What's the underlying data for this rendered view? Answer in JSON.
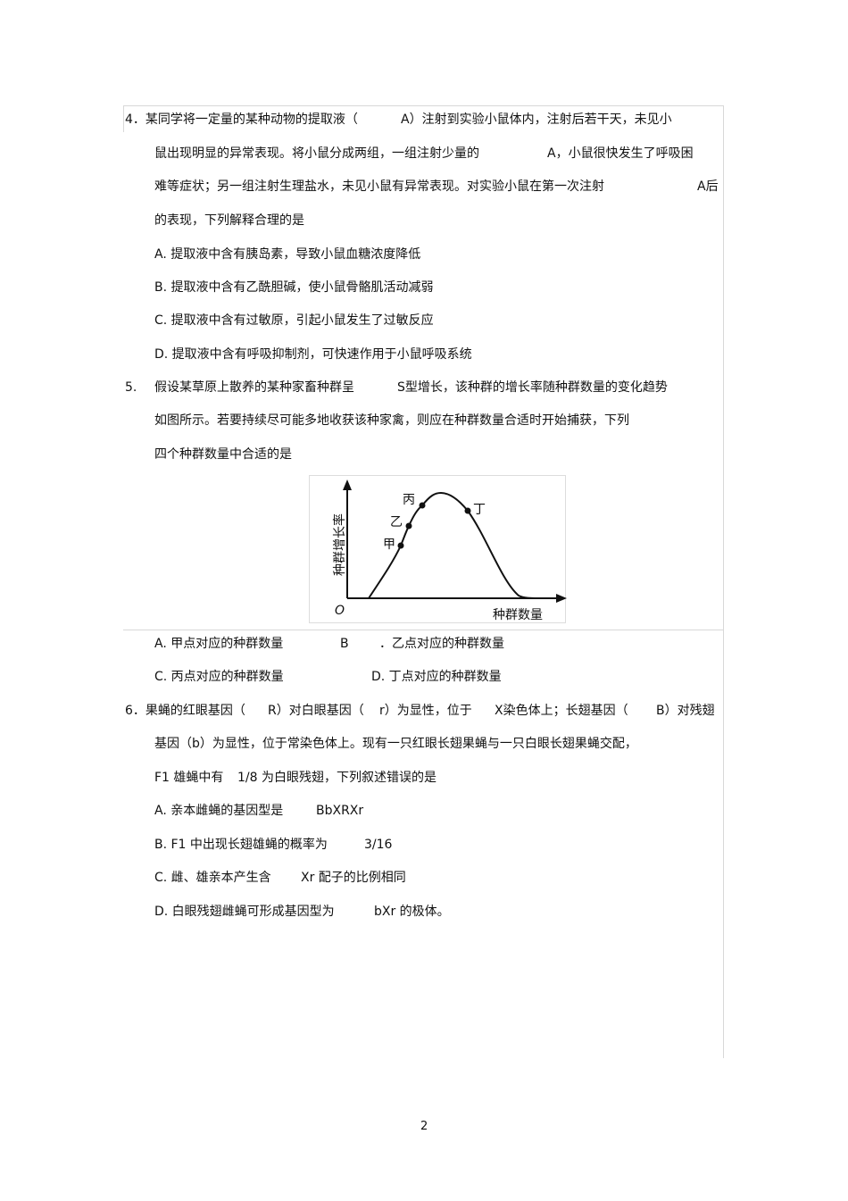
{
  "q4": {
    "l1a": "4．某同学将一定量的某种动物的提取液（",
    "l1b": "A）注射到实验小鼠体内，注射后若干天，未见小",
    "l2a": "鼠出现明显的异常表现。将小鼠分成两组，一组注射少量的",
    "l2b": "A，小鼠很快发生了呼吸困",
    "l3a": "难等症状；另一组注射生理盐水，未见小鼠有异常表现。对实验小鼠在第一次注射",
    "l3b": "A后",
    "l4": "的表现，下列解释合理的是",
    "options": [
      "A.  提取液中含有胰岛素，导致小鼠血糖浓度降低",
      "B.  提取液中含有乙酰胆碱，使小鼠骨骼肌活动减弱",
      "C.  提取液中含有过敏原，引起小鼠发生了过敏反应",
      "D.  提取液中含有呼吸抑制剂，可快速作用于小鼠呼吸系统"
    ]
  },
  "q5": {
    "num": "5.",
    "l1a": "假设某草原上散养的某种家畜种群呈",
    "l1b": "S型增长，该种群的增长率随种群数量的变化趋势",
    "l2": "如图所示。若要持续尽可能多地收获该种家禽，则应在种群数量合适时开始捕获，下列",
    "l3": "四个种群数量中合适的是",
    "figure": {
      "ylabel": "种群增长率",
      "xlabel": "种群数量",
      "origin": "O",
      "points": [
        "甲",
        "乙",
        "丙",
        "丁"
      ]
    },
    "optA": "A.  甲点对应的种群数量",
    "optB1": "B",
    "optB2": "．乙点对应的种群数量",
    "optC": "C.  丙点对应的种群数量",
    "optD": "D.  丁点对应的种群数量"
  },
  "q6": {
    "l1a": "6．果蝇的红眼基因（",
    "l1b": "R）对白眼基因（",
    "l1c": "r）为显性，位于",
    "l1d": "X染色体上；长翅基因（",
    "l1e": "B）对残翅",
    "l2": "基因（b）为显性，位于常染色体上。现有一只红眼长翅果蝇与一只白眼长翅果蝇交配，",
    "l3a": "F1 雄蝇中有",
    "l3b": "1/8  为白眼残翅，下列叙述错误的是",
    "oA1": "A.  亲本雌蝇的基因型是",
    "oA2": "BbXRXr",
    "oB1": "B.  F1 中出现长翅雄蝇的概率为",
    "oB2": "3/16",
    "oC1": "C.  雌、雄亲本产生含",
    "oC2": "Xr 配子的比例相同",
    "oD1": "D.  白眼残翅雌蝇可形成基因型为",
    "oD2": "bXr 的极体。"
  },
  "page_number": "2"
}
